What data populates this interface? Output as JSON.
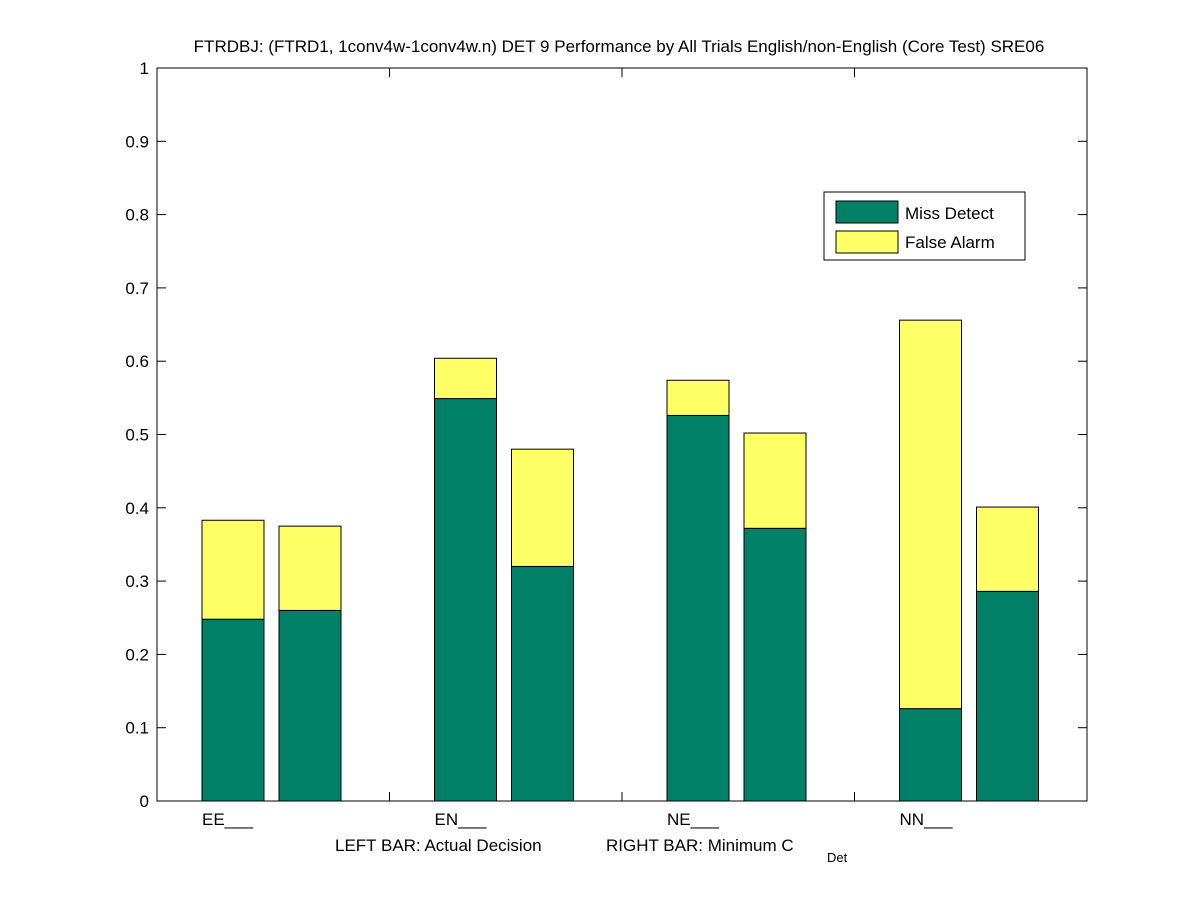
{
  "chart_data": {
    "type": "bar",
    "stacked": true,
    "title": "FTRDBJ: (FTRD1, 1conv4w-1conv4w.n) DET 9 Performance by All Trials English/non-English (Core Test) SRE06",
    "xlabel": {
      "left_text": "LEFT BAR: Actual Decision",
      "right_text": "RIGHT BAR: Minimum C",
      "right_subscript": "Det"
    },
    "ylabel": "",
    "ylim": [
      0,
      1
    ],
    "yticks": [
      "0",
      "0.1",
      "0.2",
      "0.3",
      "0.4",
      "0.5",
      "0.6",
      "0.7",
      "0.8",
      "0.9",
      "1"
    ],
    "categories": [
      "EE___",
      "EN___",
      "NE___",
      "NN___"
    ],
    "bars_per_category": [
      "Actual Decision",
      "Minimum C_Det"
    ],
    "series": [
      {
        "name": "Miss Detect",
        "color": "#008066",
        "values": [
          [
            0.248,
            0.26
          ],
          [
            0.549,
            0.32
          ],
          [
            0.526,
            0.372
          ],
          [
            0.126,
            0.286
          ]
        ]
      },
      {
        "name": "False Alarm",
        "color": "#ffff66",
        "values": [
          [
            0.135,
            0.115
          ],
          [
            0.055,
            0.16
          ],
          [
            0.048,
            0.13
          ],
          [
            0.53,
            0.115
          ]
        ]
      }
    ],
    "legend": {
      "position": "top-right",
      "entries": [
        "Miss Detect",
        "False Alarm"
      ]
    },
    "grid": false
  }
}
